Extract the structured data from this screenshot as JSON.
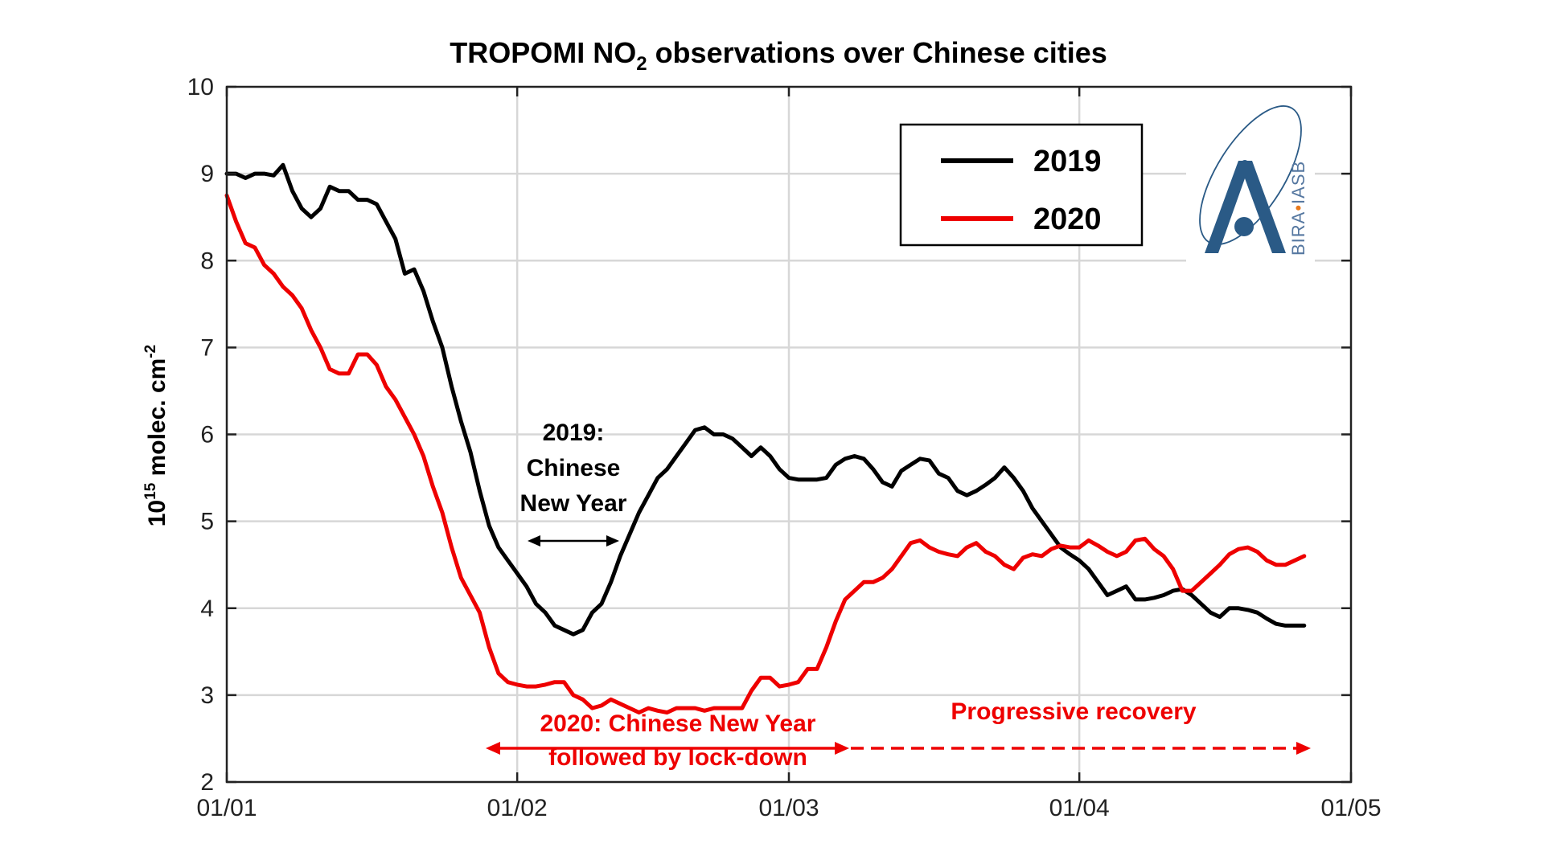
{
  "chart_data": {
    "type": "line",
    "title": "TROPOMI NO",
    "title_sub": "2",
    "title_rest": " observations over Chinese cities",
    "ylabel_base": "10",
    "ylabel_exp": "15",
    "ylabel_mid": " molec. cm",
    "ylabel_exp2": "-2",
    "xlabel": "",
    "xlim": [
      0,
      120
    ],
    "ylim": [
      2,
      10
    ],
    "x_ticks": [
      0,
      31,
      60,
      91,
      120
    ],
    "x_tick_labels": [
      "01/01",
      "01/02",
      "01/03",
      "01/04",
      "01/05"
    ],
    "y_ticks": [
      2,
      3,
      4,
      5,
      6,
      7,
      8,
      9,
      10
    ],
    "y_tick_labels": [
      "2",
      "3",
      "4",
      "5",
      "6",
      "7",
      "8",
      "9",
      "10"
    ],
    "grid": true,
    "legend_position": "top-right",
    "series": [
      {
        "name": "2019",
        "color": "#000000",
        "x": [
          0,
          1,
          2,
          3,
          4,
          5,
          6,
          7,
          8,
          9,
          10,
          11,
          12,
          13,
          14,
          15,
          16,
          17,
          18,
          19,
          20,
          21,
          22,
          23,
          24,
          25,
          26,
          27,
          28,
          29,
          30,
          31,
          32,
          33,
          34,
          35,
          36,
          37,
          38,
          39,
          40,
          41,
          42,
          43,
          44,
          45,
          46,
          47,
          48,
          49,
          50,
          51,
          52,
          53,
          54,
          55,
          56,
          57,
          58,
          59,
          60,
          61,
          62,
          63,
          64,
          65,
          66,
          67,
          68,
          69,
          70,
          71,
          72,
          73,
          74,
          75,
          76,
          77,
          78,
          79,
          80,
          81,
          82,
          83,
          84,
          85,
          86,
          87,
          88,
          89,
          90,
          91,
          92,
          93,
          94,
          95,
          96,
          97,
          98,
          99,
          100,
          101,
          102,
          103,
          104,
          105,
          106,
          107,
          108,
          109,
          110,
          111,
          112,
          113,
          114,
          115
        ],
        "values": [
          9.0,
          9.0,
          8.95,
          9.0,
          9.0,
          8.98,
          9.1,
          8.8,
          8.6,
          8.5,
          8.6,
          8.85,
          8.8,
          8.8,
          8.7,
          8.7,
          8.65,
          8.45,
          8.25,
          7.85,
          7.9,
          7.65,
          7.3,
          7.0,
          6.55,
          6.15,
          5.8,
          5.35,
          4.95,
          4.7,
          4.55,
          4.4,
          4.25,
          4.05,
          3.95,
          3.8,
          3.75,
          3.7,
          3.75,
          3.95,
          4.05,
          4.3,
          4.6,
          4.85,
          5.1,
          5.3,
          5.5,
          5.6,
          5.75,
          5.9,
          6.05,
          6.08,
          6.0,
          6.0,
          5.95,
          5.85,
          5.75,
          5.85,
          5.75,
          5.6,
          5.5,
          5.48,
          5.48,
          5.48,
          5.5,
          5.65,
          5.72,
          5.75,
          5.72,
          5.6,
          5.45,
          5.4,
          5.58,
          5.65,
          5.72,
          5.7,
          5.55,
          5.5,
          5.35,
          5.3,
          5.35,
          5.42,
          5.5,
          5.62,
          5.5,
          5.35,
          5.15,
          5.0,
          4.85,
          4.7,
          4.62,
          4.55,
          4.45,
          4.3,
          4.15,
          4.2,
          4.25,
          4.1,
          4.1,
          4.12,
          4.15,
          4.2,
          4.22,
          4.15,
          4.05,
          3.95,
          3.9,
          4.0,
          4.0,
          3.98,
          3.95,
          3.88,
          3.82,
          3.8,
          3.8,
          3.8
        ]
      },
      {
        "name": "2020",
        "color": "#ee0000",
        "x": [
          0,
          1,
          2,
          3,
          4,
          5,
          6,
          7,
          8,
          9,
          10,
          11,
          12,
          13,
          14,
          15,
          16,
          17,
          18,
          19,
          20,
          21,
          22,
          23,
          24,
          25,
          26,
          27,
          28,
          29,
          30,
          31,
          32,
          33,
          34,
          35,
          36,
          37,
          38,
          39,
          40,
          41,
          42,
          43,
          44,
          45,
          46,
          47,
          48,
          49,
          50,
          51,
          52,
          53,
          54,
          55,
          56,
          57,
          58,
          59,
          60,
          61,
          62,
          63,
          64,
          65,
          66,
          67,
          68,
          69,
          70,
          71,
          72,
          73,
          74,
          75,
          76,
          77,
          78,
          79,
          80,
          81,
          82,
          83,
          84,
          85,
          86,
          87,
          88,
          89,
          90,
          91,
          92,
          93,
          94,
          95,
          96,
          97,
          98,
          99,
          100,
          101,
          102,
          103,
          104,
          105,
          106,
          107,
          108,
          109,
          110,
          111,
          112,
          113,
          114,
          115
        ],
        "values": [
          8.75,
          8.45,
          8.2,
          8.15,
          7.95,
          7.85,
          7.7,
          7.6,
          7.45,
          7.2,
          7.0,
          6.75,
          6.7,
          6.7,
          6.92,
          6.92,
          6.8,
          6.55,
          6.4,
          6.2,
          6.0,
          5.75,
          5.4,
          5.1,
          4.7,
          4.35,
          4.15,
          3.95,
          3.55,
          3.25,
          3.15,
          3.12,
          3.1,
          3.1,
          3.12,
          3.15,
          3.15,
          3.0,
          2.95,
          2.85,
          2.88,
          2.95,
          2.9,
          2.85,
          2.8,
          2.85,
          2.82,
          2.8,
          2.85,
          2.85,
          2.85,
          2.82,
          2.85,
          2.85,
          2.85,
          2.85,
          3.05,
          3.2,
          3.2,
          3.1,
          3.12,
          3.15,
          3.3,
          3.3,
          3.55,
          3.85,
          4.1,
          4.2,
          4.3,
          4.3,
          4.35,
          4.45,
          4.6,
          4.75,
          4.78,
          4.7,
          4.65,
          4.62,
          4.6,
          4.7,
          4.75,
          4.65,
          4.6,
          4.5,
          4.45,
          4.58,
          4.62,
          4.6,
          4.68,
          4.72,
          4.7,
          4.7,
          4.78,
          4.72,
          4.65,
          4.6,
          4.65,
          4.78,
          4.8,
          4.68,
          4.6,
          4.45,
          4.2,
          4.2,
          4.3,
          4.4,
          4.5,
          4.62,
          4.68,
          4.7,
          4.65,
          4.55,
          4.5,
          4.5,
          4.55,
          4.6
        ]
      }
    ],
    "annotations": {
      "cny_2019_lines": [
        "2019:",
        "Chinese",
        "New Year"
      ],
      "lockdown_lines": [
        "2020: Chinese New Year",
        "followed by lock-down"
      ],
      "recovery": "Progressive recovery"
    },
    "colors": {
      "red": "#ee0000",
      "logo_blue": "#2a5a86",
      "grid": "#d7d7d7"
    }
  },
  "logo": {
    "text_left": "BIRA",
    "text_right": "IASB"
  }
}
